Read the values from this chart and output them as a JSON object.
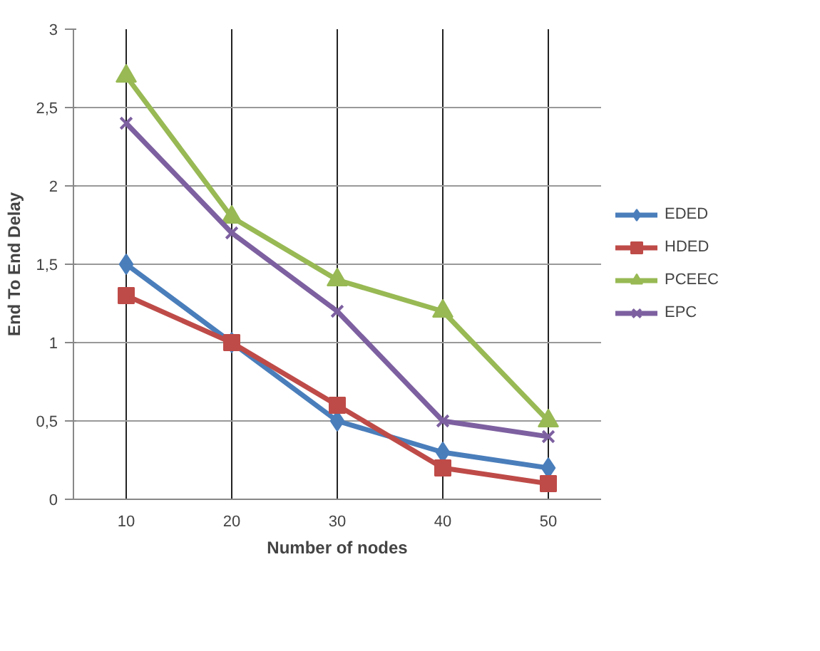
{
  "chart_data": {
    "type": "line",
    "xlabel": "Number of nodes",
    "ylabel": "End To End Delay",
    "categories": [
      "10",
      "20",
      "30",
      "40",
      "50"
    ],
    "series": [
      {
        "name": "EDED",
        "color": "#4a7ebb",
        "marker": "diamond",
        "values": [
          1.5,
          1.0,
          0.5,
          0.3,
          0.2
        ]
      },
      {
        "name": "HDED",
        "color": "#be4b48",
        "marker": "square",
        "values": [
          1.3,
          1.0,
          0.6,
          0.2,
          0.1
        ]
      },
      {
        "name": "PCEEC",
        "color": "#98b954",
        "marker": "triangle",
        "values": [
          2.7,
          1.8,
          1.4,
          1.2,
          0.5
        ]
      },
      {
        "name": "EPC",
        "color": "#7d60a0",
        "marker": "cross",
        "values": [
          2.4,
          1.7,
          1.2,
          0.5,
          0.4
        ]
      }
    ],
    "ylim": [
      0,
      3
    ],
    "yticks": [
      0,
      {
        "value": 0.5,
        "label": "0,5"
      },
      1,
      {
        "value": 1.5,
        "label": "1,5"
      },
      2,
      {
        "value": 2.5,
        "label": "2,5"
      },
      3
    ],
    "grid": true,
    "legend": "right",
    "line_style": "solid"
  }
}
